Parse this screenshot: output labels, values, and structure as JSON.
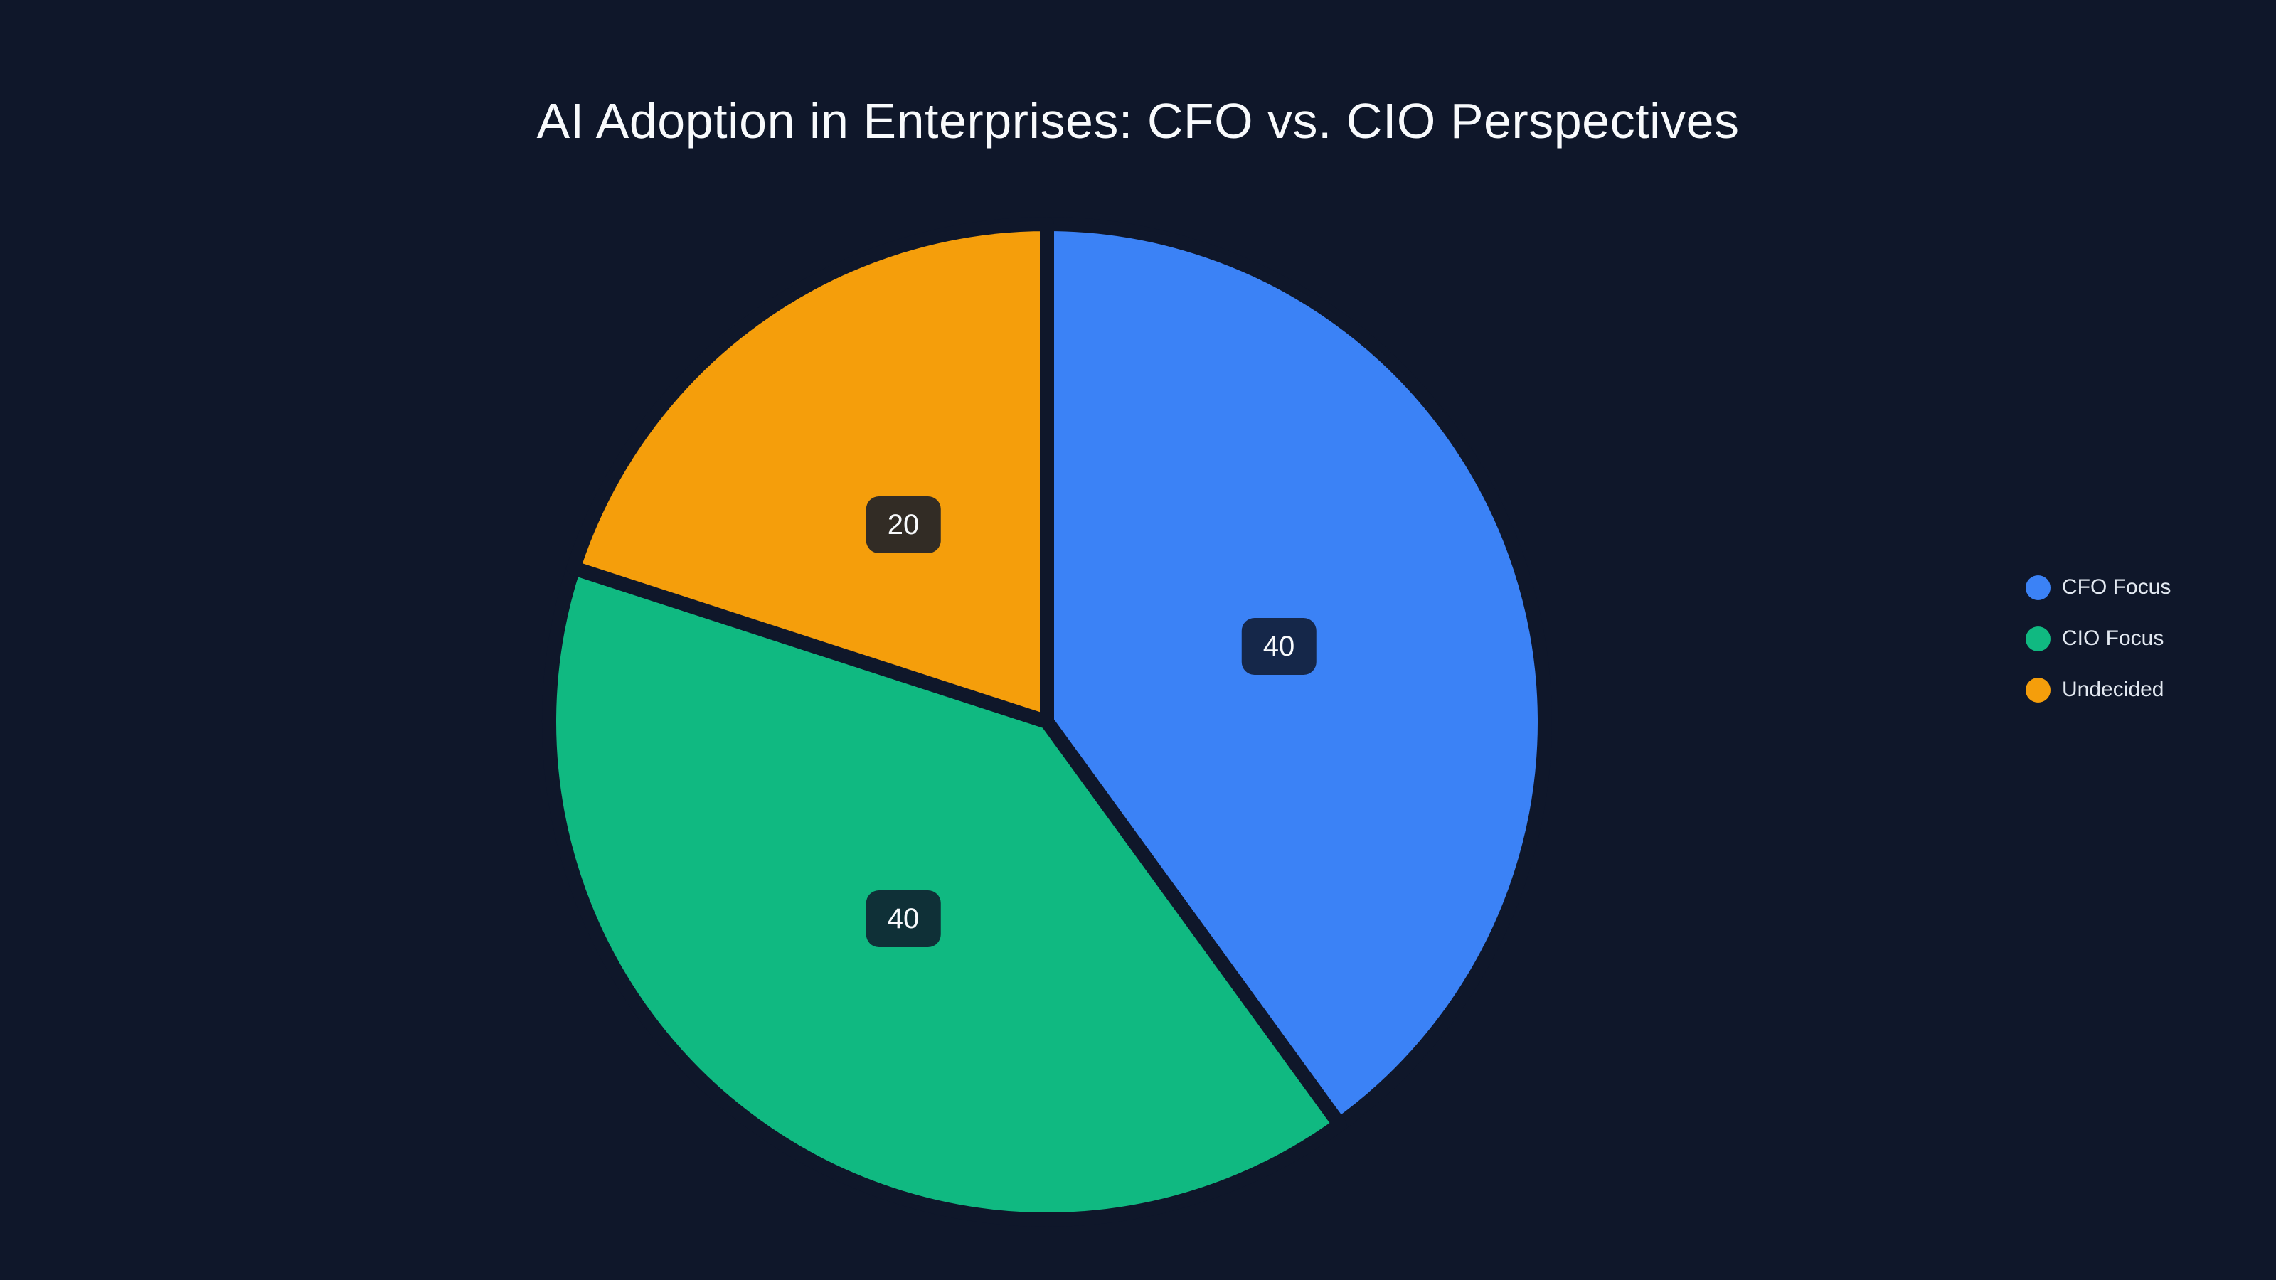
{
  "title": "AI Adoption in Enterprises: CFO vs. CIO Perspectives",
  "colors": {
    "background": "#0f172a",
    "title_text": "#f8fafc",
    "legend_text": "#e2e8f0",
    "value_label_text": "#f8fafc",
    "value_label_box": "rgba(15,23,42,0.85)",
    "slice_border": "#0f172a"
  },
  "legend": {
    "position": "right",
    "items": [
      {
        "label": "CFO Focus",
        "color": "#3b82f6"
      },
      {
        "label": "CIO Focus",
        "color": "#10b981"
      },
      {
        "label": "Undecided",
        "color": "#f59e0b"
      }
    ]
  },
  "chart_data": {
    "type": "pie",
    "title": "AI Adoption in Enterprises: CFO vs. CIO Perspectives",
    "labels": [
      "CFO Focus",
      "CIO Focus",
      "Undecided"
    ],
    "values": [
      40,
      40,
      20
    ],
    "colors": [
      "#3b82f6",
      "#10b981",
      "#f59e0b"
    ],
    "data_labels": [
      "40",
      "40",
      "20"
    ],
    "start_angle_deg": 0,
    "direction": "clockwise",
    "hole": 0,
    "legend_position": "right",
    "label_distance_fraction": 0.49
  }
}
